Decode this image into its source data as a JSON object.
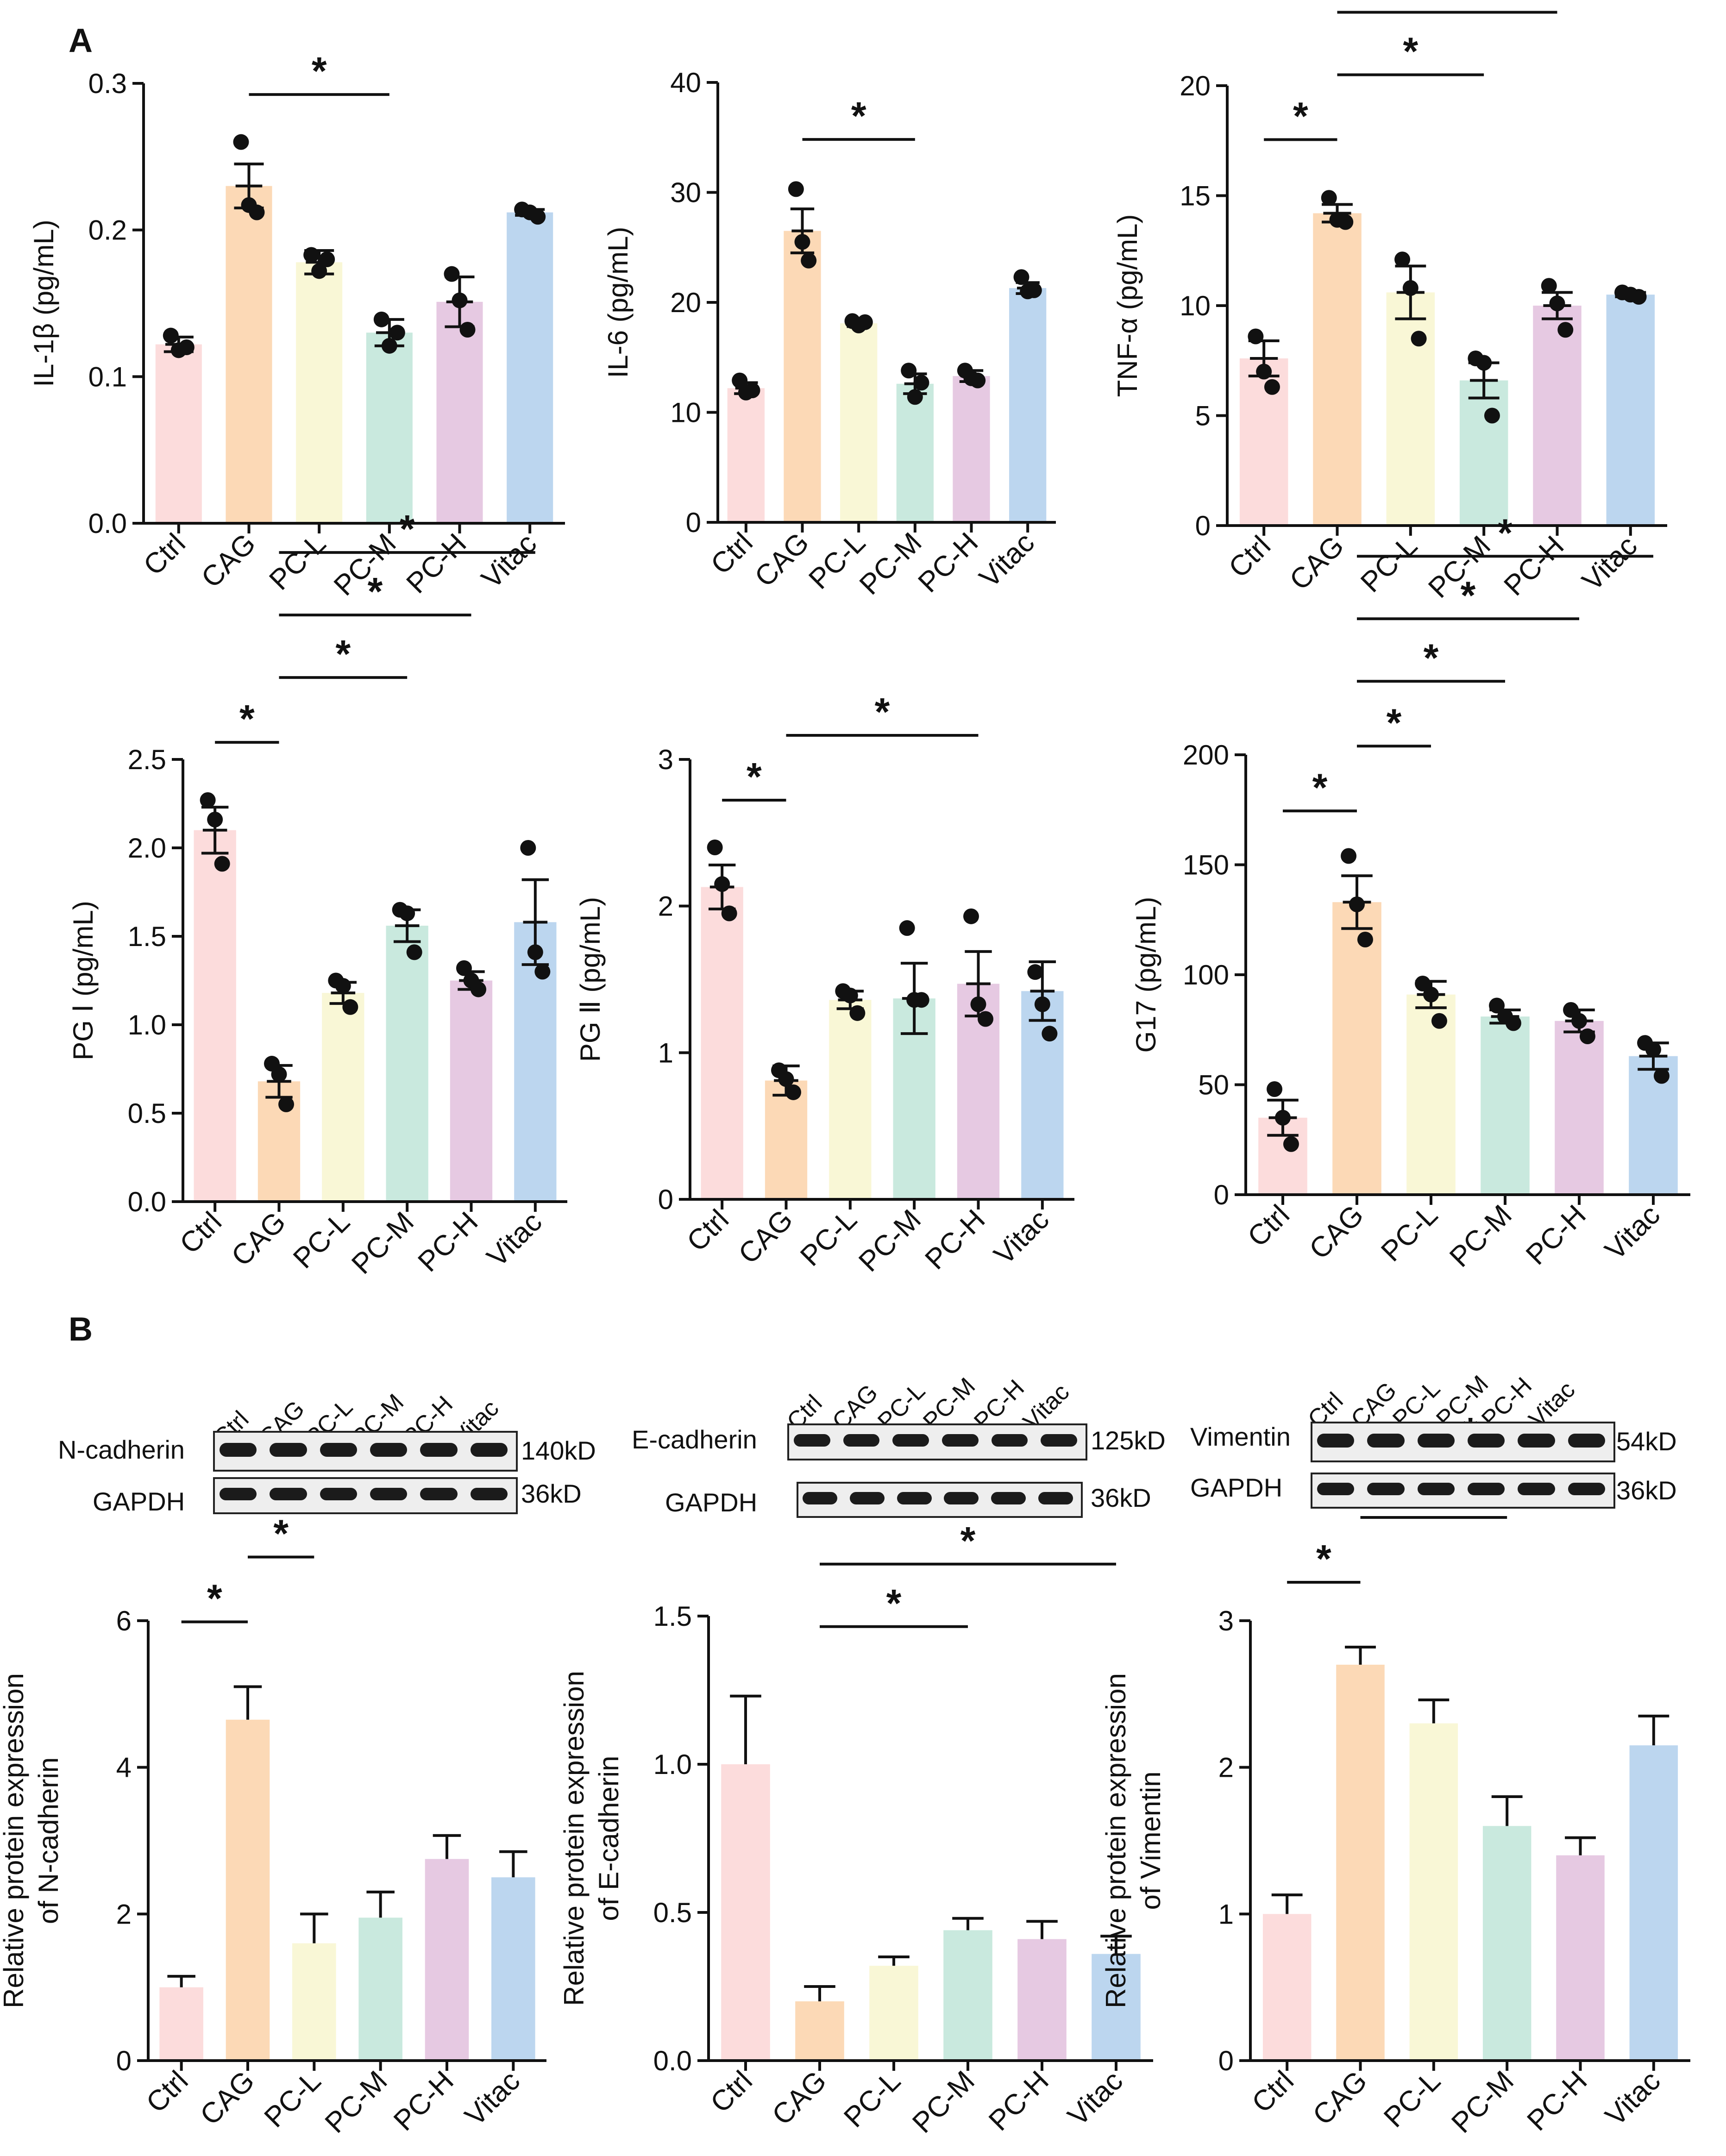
{
  "panel_labels": {
    "a": "A",
    "b": "B"
  },
  "colors": {
    "bars": [
      "#fcdcdc",
      "#fcd9b6",
      "#f9f7d6",
      "#c9e9de",
      "#e6c9e2",
      "#bcd6ef"
    ],
    "dot": "#111111",
    "axis": "#111111"
  },
  "chart_data": [
    {
      "id": "il1b",
      "type": "bar",
      "title": "",
      "xlabel": "",
      "ylabel": "IL-1β (pg/mL)",
      "categories": [
        "Ctrl",
        "CAG",
        "PC-L",
        "PC-M",
        "PC-H",
        "Vitac"
      ],
      "values": [
        0.122,
        0.23,
        0.178,
        0.13,
        0.151,
        0.212
      ],
      "errors": [
        0.005,
        0.015,
        0.008,
        0.009,
        0.017,
        0.002
      ],
      "points": [
        [
          0.128,
          0.118,
          0.12
        ],
        [
          0.26,
          0.217,
          0.212
        ],
        [
          0.183,
          0.172,
          0.18
        ],
        [
          0.139,
          0.121,
          0.13
        ],
        [
          0.17,
          0.152,
          0.132
        ],
        [
          0.214,
          0.212,
          0.209
        ]
      ],
      "ylim": [
        0,
        0.3
      ],
      "yticks": [
        "0.0",
        "0.1",
        "0.2",
        "0.3"
      ],
      "significance": [
        {
          "from": 1,
          "to": 3,
          "label": "*"
        }
      ]
    },
    {
      "id": "il6",
      "type": "bar",
      "title": "",
      "xlabel": "",
      "ylabel": "IL-6 (pg/mL)",
      "categories": [
        "Ctrl",
        "CAG",
        "PC-L",
        "PC-M",
        "PC-H",
        "Vitac"
      ],
      "values": [
        12.2,
        26.5,
        18.1,
        12.6,
        13.3,
        21.3
      ],
      "errors": [
        0.5,
        2.0,
        0.3,
        0.9,
        0.5,
        0.5
      ],
      "points": [
        [
          12.9,
          11.8,
          12.0
        ],
        [
          30.3,
          25.5,
          23.8
        ],
        [
          18.3,
          17.9,
          18.2
        ],
        [
          13.8,
          11.4,
          12.7
        ],
        [
          13.8,
          13.1,
          12.9
        ],
        [
          22.3,
          21.0,
          21.1
        ]
      ],
      "ylim": [
        0,
        40
      ],
      "yticks": [
        "0",
        "10",
        "20",
        "30",
        "40"
      ],
      "significance": [
        {
          "from": 1,
          "to": 3,
          "label": "*"
        }
      ]
    },
    {
      "id": "tnfa",
      "type": "bar",
      "title": "",
      "xlabel": "",
      "ylabel": "TNF-α (pg/mL)",
      "categories": [
        "Ctrl",
        "CAG",
        "PC-L",
        "PC-M",
        "PC-H",
        "Vitac"
      ],
      "values": [
        7.6,
        14.2,
        10.6,
        6.6,
        10.0,
        10.5
      ],
      "errors": [
        0.8,
        0.4,
        1.2,
        0.8,
        0.6,
        0.1
      ],
      "points": [
        [
          8.6,
          7.0,
          6.3
        ],
        [
          14.9,
          13.9,
          13.8
        ],
        [
          12.1,
          10.8,
          8.5
        ],
        [
          7.6,
          7.4,
          5.0
        ],
        [
          10.9,
          10.1,
          8.9
        ],
        [
          10.6,
          10.5,
          10.4
        ]
      ],
      "ylim": [
        0,
        20
      ],
      "yticks": [
        "0",
        "5",
        "10",
        "15",
        "20"
      ],
      "significance": [
        {
          "from": 0,
          "to": 1,
          "label": "*"
        },
        {
          "from": 1,
          "to": 3,
          "label": "*"
        },
        {
          "from": 1,
          "to": 4,
          "label": "*"
        },
        {
          "from": 1,
          "to": 5,
          "label": "*"
        }
      ]
    },
    {
      "id": "pg1",
      "type": "bar",
      "title": "",
      "xlabel": "",
      "ylabel": "PG Ⅰ (pg/mL)",
      "categories": [
        "Ctrl",
        "CAG",
        "PC-L",
        "PC-M",
        "PC-H",
        "Vitac"
      ],
      "values": [
        2.1,
        0.68,
        1.18,
        1.56,
        1.25,
        1.58
      ],
      "errors": [
        0.13,
        0.09,
        0.06,
        0.09,
        0.05,
        0.24
      ],
      "points": [
        [
          2.27,
          2.16,
          1.91
        ],
        [
          0.78,
          0.72,
          0.55
        ],
        [
          1.25,
          1.22,
          1.1
        ],
        [
          1.65,
          1.63,
          1.41
        ],
        [
          1.32,
          1.25,
          1.2
        ],
        [
          2.0,
          1.41,
          1.3
        ]
      ],
      "ylim": [
        0,
        2.5
      ],
      "yticks": [
        "0.0",
        "0.5",
        "1.0",
        "1.5",
        "2.0",
        "2.5"
      ],
      "significance": [
        {
          "from": 0,
          "to": 1,
          "label": "*"
        },
        {
          "from": 1,
          "to": 3,
          "label": "*"
        },
        {
          "from": 1,
          "to": 4,
          "label": "*"
        },
        {
          "from": 1,
          "to": 5,
          "label": "*"
        }
      ]
    },
    {
      "id": "pg2",
      "type": "bar",
      "title": "",
      "xlabel": "",
      "ylabel": "PG Ⅱ (pg/mL)",
      "categories": [
        "Ctrl",
        "CAG",
        "PC-L",
        "PC-M",
        "PC-H",
        "Vitac"
      ],
      "values": [
        2.13,
        0.81,
        1.36,
        1.37,
        1.47,
        1.42
      ],
      "errors": [
        0.15,
        0.1,
        0.06,
        0.24,
        0.22,
        0.2
      ],
      "points": [
        [
          2.4,
          2.15,
          1.95
        ],
        [
          0.88,
          0.82,
          0.73
        ],
        [
          1.42,
          1.39,
          1.27
        ],
        [
          1.85,
          1.36,
          1.36
        ],
        [
          1.93,
          1.33,
          1.23
        ],
        [
          1.55,
          1.33,
          1.13
        ]
      ],
      "ylim": [
        0,
        3
      ],
      "yticks": [
        "0",
        "1",
        "2",
        "3"
      ],
      "significance": [
        {
          "from": 0,
          "to": 1,
          "label": "*"
        },
        {
          "from": 1,
          "to": 4,
          "label": "*"
        }
      ]
    },
    {
      "id": "g17",
      "type": "bar",
      "title": "",
      "xlabel": "",
      "ylabel": "G17 (pg/mL)",
      "categories": [
        "Ctrl",
        "CAG",
        "PC-L",
        "PC-M",
        "PC-H",
        "Vitac"
      ],
      "values": [
        35,
        133,
        91,
        81,
        79,
        63
      ],
      "errors": [
        8,
        12,
        6,
        3,
        5,
        6
      ],
      "points": [
        [
          48,
          35,
          23
        ],
        [
          154,
          132,
          116
        ],
        [
          96,
          91,
          79
        ],
        [
          86,
          81,
          78
        ],
        [
          84,
          79,
          72
        ],
        [
          69,
          66,
          54
        ]
      ],
      "ylim": [
        0,
        200
      ],
      "yticks": [
        "0",
        "50",
        "100",
        "150",
        "200"
      ],
      "significance": [
        {
          "from": 0,
          "to": 1,
          "label": "*"
        },
        {
          "from": 1,
          "to": 2,
          "label": "*"
        },
        {
          "from": 1,
          "to": 3,
          "label": "*"
        },
        {
          "from": 1,
          "to": 4,
          "label": "*"
        },
        {
          "from": 1,
          "to": 5,
          "label": "*"
        }
      ]
    },
    {
      "id": "ncad",
      "type": "bar",
      "title": "",
      "xlabel": "",
      "ylabel": "Relative protein expression of N-cadherin",
      "ylabel_lines": [
        "Relative protein expression",
        "of N-cadherin"
      ],
      "categories": [
        "Ctrl",
        "CAG",
        "PC-L",
        "PC-M",
        "PC-H",
        "Vitac"
      ],
      "values": [
        1.0,
        4.65,
        1.6,
        1.95,
        2.75,
        2.5
      ],
      "errors": [
        0.15,
        0.45,
        0.4,
        0.35,
        0.32,
        0.35
      ],
      "ylim": [
        0,
        6
      ],
      "yticks": [
        "0",
        "2",
        "4",
        "6"
      ],
      "significance": [
        {
          "from": 0,
          "to": 1,
          "label": "*"
        },
        {
          "from": 1,
          "to": 2,
          "label": "*"
        }
      ]
    },
    {
      "id": "ecad",
      "type": "bar",
      "title": "",
      "xlabel": "",
      "ylabel": "Relative protein expression of E-cadherin",
      "ylabel_lines": [
        "Relative protein expression",
        "of E-cadherin"
      ],
      "categories": [
        "Ctrl",
        "CAG",
        "PC-L",
        "PC-M",
        "PC-H",
        "Vitac"
      ],
      "values": [
        1.0,
        0.2,
        0.32,
        0.44,
        0.41,
        0.36
      ],
      "errors": [
        0.23,
        0.05,
        0.03,
        0.04,
        0.06,
        0.06
      ],
      "ylim": [
        0,
        1.5
      ],
      "yticks": [
        "0.0",
        "0.5",
        "1.0",
        "1.5"
      ],
      "significance": [
        {
          "from": 1,
          "to": 3,
          "label": "*"
        },
        {
          "from": 1,
          "to": 5,
          "label": "*"
        }
      ]
    },
    {
      "id": "vim",
      "type": "bar",
      "title": "",
      "xlabel": "",
      "ylabel": "Relative protein expression of Vimentin",
      "ylabel_lines": [
        "Relative protein expression",
        "of Vimentin"
      ],
      "categories": [
        "Ctrl",
        "CAG",
        "PC-L",
        "PC-M",
        "PC-H",
        "Vitac"
      ],
      "values": [
        1.0,
        2.7,
        2.3,
        1.6,
        1.4,
        2.15
      ],
      "errors": [
        0.13,
        0.12,
        0.16,
        0.2,
        0.12,
        0.2
      ],
      "ylim": [
        0,
        3
      ],
      "yticks": [
        "0",
        "1",
        "2",
        "3"
      ],
      "significance": [
        {
          "from": 0,
          "to": 1,
          "label": "*"
        },
        {
          "from": 1,
          "to": 3,
          "label": "*"
        },
        {
          "from": 1,
          "to": 4,
          "label": "*"
        }
      ]
    }
  ],
  "blots": [
    {
      "id": "ncad",
      "lanes": [
        "Ctrl",
        "CAG",
        "PC-L",
        "PC-M",
        "PC-H",
        "Vitac"
      ],
      "rows": [
        {
          "label": "N-cadherin",
          "size": "140kD"
        },
        {
          "label": "GAPDH",
          "size": "36kD"
        }
      ]
    },
    {
      "id": "ecad",
      "lanes": [
        "Ctrl",
        "CAG",
        "PC-L",
        "PC-M",
        "PC-H",
        "Vitac"
      ],
      "rows": [
        {
          "label": "E-cadherin",
          "size": "125kD"
        },
        {
          "label": "GAPDH",
          "size": "36kD"
        }
      ]
    },
    {
      "id": "vim",
      "lanes": [
        "Ctrl",
        "CAG",
        "PC-L",
        "PC-M",
        "PC-H",
        "Vitac"
      ],
      "rows": [
        {
          "label": "Vimentin",
          "size": "54kD"
        },
        {
          "label": "GAPDH",
          "size": "36kD"
        }
      ]
    }
  ]
}
